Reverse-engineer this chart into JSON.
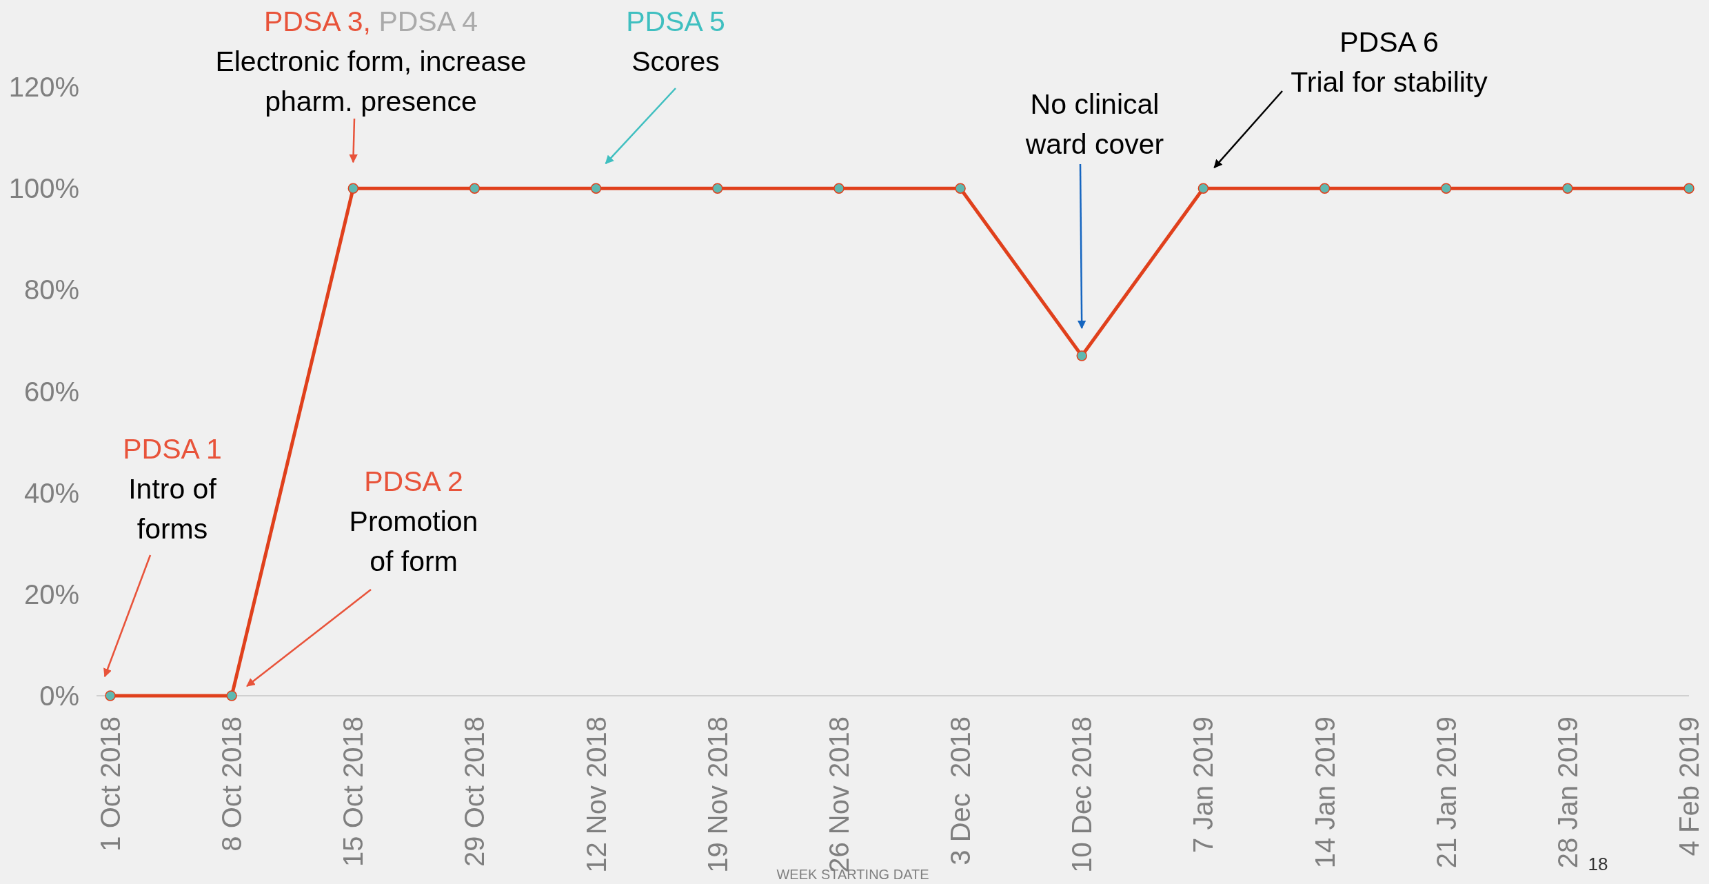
{
  "chart_data": {
    "type": "line",
    "xlabel": "WEEK STARTING DATE",
    "categories": [
      "1 Oct 2018",
      "8 Oct 2018",
      "15 Oct 2018",
      "29 Oct 2018",
      "12 Nov 2018",
      "19 Nov 2018",
      "26 Nov 2018",
      "3 Dec  2018",
      "10 Dec 2018",
      "7 Jan 2019",
      "14 Jan 2019",
      "21 Jan 2019",
      "28 Jan 2019",
      "4 Feb 2019"
    ],
    "series": [
      {
        "color": "#e0401c",
        "values": [
          0,
          0,
          100,
          100,
          100,
          100,
          100,
          100,
          67,
          100,
          100,
          100,
          100,
          100
        ]
      }
    ],
    "ylim": [
      0,
      120
    ],
    "yticks": [
      {
        "value": 0,
        "label": "0%"
      },
      {
        "value": 20,
        "label": "20%"
      },
      {
        "value": 40,
        "label": "40%"
      },
      {
        "value": 60,
        "label": "60%"
      },
      {
        "value": 80,
        "label": "80%"
      },
      {
        "value": 100,
        "label": "100%"
      },
      {
        "value": 120,
        "label": "120%"
      }
    ],
    "marker": "circle",
    "grid": false,
    "annotations": [
      "PDSA 1\nIntro of\nforms",
      "PDSA 2\nPromotion\nof form",
      "PDSA 3, PDSA 4\nElectronic form, increase\npharm. presence",
      "PDSA 5\nScores",
      "No clinical\nward cover",
      "PDSA 6\nTrial for stability",
      "18"
    ]
  }
}
